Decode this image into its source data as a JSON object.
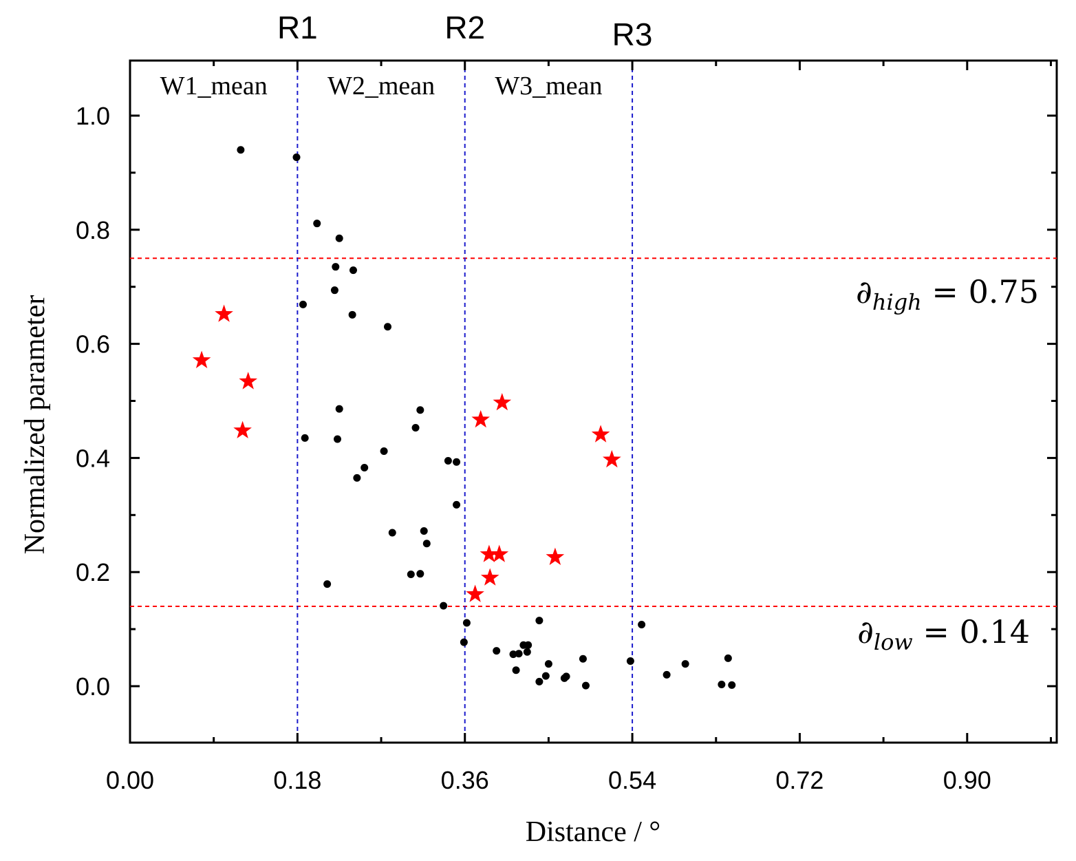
{
  "chart_data": {
    "type": "scatter",
    "xlabel": "Distance / °",
    "ylabel": "Normalized parameter",
    "xlim": [
      0.0,
      1.0
    ],
    "ylim": [
      -0.1,
      1.1
    ],
    "xticks": [
      "0.00",
      "0.18",
      "0.36",
      "0.54",
      "0.72",
      "0.90"
    ],
    "yticks": [
      "0.0",
      "0.2",
      "0.4",
      "0.6",
      "0.8",
      "1.0"
    ],
    "regions": [
      {
        "name": "R1",
        "x": 0.18
      },
      {
        "name": "R2",
        "x": 0.36
      },
      {
        "name": "R3",
        "x": 0.54
      }
    ],
    "window_labels": [
      "W1_mean",
      "W2_mean",
      "W3_mean"
    ],
    "thresholds": [
      {
        "symbol": "∂",
        "sub": "high",
        "text": " = 0.75",
        "value": 0.75
      },
      {
        "symbol": "∂",
        "sub": "low",
        "text": " = 0.14",
        "value": 0.14
      }
    ],
    "colors": {
      "dots": "#000000",
      "stars": "#ff0000",
      "regions": "#1a1acc",
      "thresholds": "#ff0000"
    },
    "series": [
      {
        "name": "dots",
        "marker": "circle",
        "points": [
          [
            0.119,
            0.94
          ],
          [
            0.179,
            0.927
          ],
          [
            0.201,
            0.811
          ],
          [
            0.225,
            0.785
          ],
          [
            0.221,
            0.735
          ],
          [
            0.24,
            0.729
          ],
          [
            0.22,
            0.694
          ],
          [
            0.186,
            0.669
          ],
          [
            0.239,
            0.651
          ],
          [
            0.277,
            0.63
          ],
          [
            0.225,
            0.486
          ],
          [
            0.312,
            0.484
          ],
          [
            0.307,
            0.453
          ],
          [
            0.188,
            0.435
          ],
          [
            0.223,
            0.433
          ],
          [
            0.273,
            0.412
          ],
          [
            0.342,
            0.395
          ],
          [
            0.351,
            0.393
          ],
          [
            0.252,
            0.383
          ],
          [
            0.244,
            0.365
          ],
          [
            0.351,
            0.318
          ],
          [
            0.282,
            0.269
          ],
          [
            0.316,
            0.272
          ],
          [
            0.319,
            0.25
          ],
          [
            0.302,
            0.196
          ],
          [
            0.312,
            0.197
          ],
          [
            0.212,
            0.179
          ],
          [
            0.337,
            0.141
          ],
          [
            0.362,
            0.111
          ],
          [
            0.359,
            0.077
          ],
          [
            0.55,
            0.108
          ],
          [
            0.44,
            0.115
          ],
          [
            0.394,
            0.062
          ],
          [
            0.412,
            0.056
          ],
          [
            0.418,
            0.057
          ],
          [
            0.423,
            0.072
          ],
          [
            0.428,
            0.072
          ],
          [
            0.427,
            0.06
          ],
          [
            0.45,
            0.039
          ],
          [
            0.487,
            0.048
          ],
          [
            0.415,
            0.028
          ],
          [
            0.447,
            0.018
          ],
          [
            0.467,
            0.014
          ],
          [
            0.469,
            0.017
          ],
          [
            0.44,
            0.008
          ],
          [
            0.49,
            0.001
          ],
          [
            0.538,
            0.044
          ],
          [
            0.577,
            0.02
          ],
          [
            0.597,
            0.039
          ],
          [
            0.643,
            0.049
          ],
          [
            0.636,
            0.003
          ],
          [
            0.647,
            0.002
          ]
        ]
      },
      {
        "name": "stars",
        "marker": "star",
        "points": [
          [
            0.101,
            0.652
          ],
          [
            0.077,
            0.571
          ],
          [
            0.127,
            0.534
          ],
          [
            0.121,
            0.448
          ],
          [
            0.4,
            0.497
          ],
          [
            0.377,
            0.467
          ],
          [
            0.506,
            0.441
          ],
          [
            0.518,
            0.397
          ],
          [
            0.386,
            0.231
          ],
          [
            0.397,
            0.231
          ],
          [
            0.457,
            0.226
          ],
          [
            0.387,
            0.19
          ],
          [
            0.371,
            0.161
          ]
        ]
      }
    ]
  }
}
